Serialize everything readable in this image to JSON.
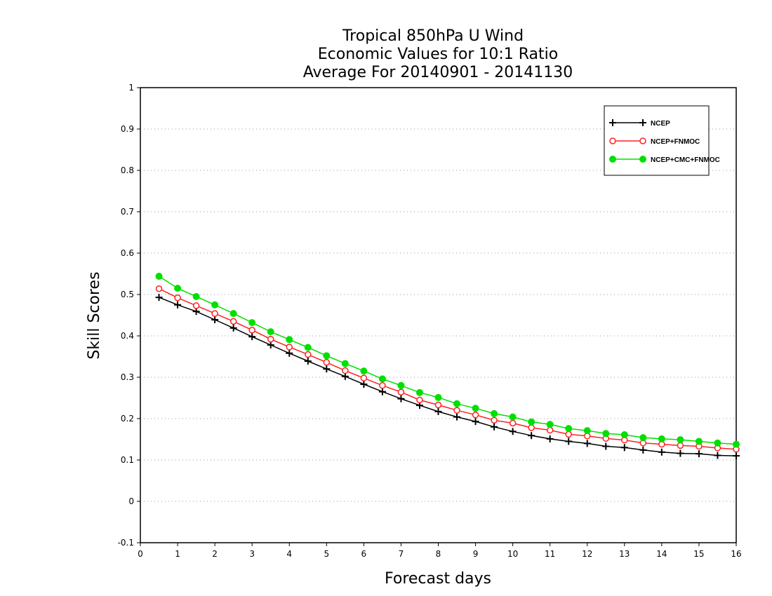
{
  "chart_data": {
    "type": "line",
    "title_lines": [
      "Tropical 850hPa U Wind",
      "Economic Values for 10:1 Ratio",
      "Average For 20140901 - 20141130"
    ],
    "xlabel": "Forecast days",
    "ylabel": "Skill Scores",
    "xlim": [
      0,
      16
    ],
    "ylim": [
      -0.1,
      1
    ],
    "x_ticks": [
      0,
      1,
      2,
      3,
      4,
      5,
      6,
      7,
      8,
      9,
      10,
      11,
      12,
      13,
      14,
      15,
      16
    ],
    "x_tick_labels": [
      "0",
      "1",
      "2",
      "3",
      "4",
      "5",
      "6",
      "7",
      "8",
      "9",
      "10",
      "11",
      "12",
      "13",
      "14",
      "15",
      "16"
    ],
    "y_ticks": [
      -0.1,
      0,
      0.1,
      0.2,
      0.3,
      0.4,
      0.5,
      0.6,
      0.7,
      0.8,
      0.9,
      1
    ],
    "y_tick_labels": [
      "-0.1",
      "0",
      "0.1",
      "0.2",
      "0.3",
      "0.4",
      "0.5",
      "0.6",
      "0.7",
      "0.8",
      "0.9",
      "1"
    ],
    "grid": "horizontal dotted",
    "legend_position": "top-right",
    "x": [
      0.5,
      1,
      1.5,
      2,
      2.5,
      3,
      3.5,
      4,
      4.5,
      5,
      5.5,
      6,
      6.5,
      7,
      7.5,
      8,
      8.5,
      9,
      9.5,
      10,
      10.5,
      11,
      11.5,
      12,
      12.5,
      13,
      13.5,
      14,
      14.5,
      15,
      15.5,
      16
    ],
    "series": [
      {
        "name": "NCEP",
        "color": "#000000",
        "marker": "plus",
        "values": [
          0.493,
          0.475,
          0.459,
          0.439,
          0.419,
          0.398,
          0.378,
          0.358,
          0.339,
          0.32,
          0.302,
          0.283,
          0.265,
          0.248,
          0.232,
          0.217,
          0.204,
          0.193,
          0.18,
          0.169,
          0.159,
          0.151,
          0.145,
          0.14,
          0.133,
          0.13,
          0.124,
          0.119,
          0.116,
          0.115,
          0.111,
          0.11
        ]
      },
      {
        "name": "NCEP+FNMOC",
        "color": "#ff2020",
        "marker": "open-circle",
        "values": [
          0.514,
          0.492,
          0.473,
          0.454,
          0.435,
          0.414,
          0.392,
          0.373,
          0.355,
          0.336,
          0.316,
          0.298,
          0.28,
          0.264,
          0.245,
          0.233,
          0.22,
          0.209,
          0.196,
          0.189,
          0.178,
          0.172,
          0.162,
          0.158,
          0.152,
          0.148,
          0.141,
          0.138,
          0.135,
          0.133,
          0.129,
          0.126
        ]
      },
      {
        "name": "NCEP+CMC+FNMOC",
        "color": "#00e000",
        "marker": "filled-circle",
        "values": [
          0.544,
          0.515,
          0.495,
          0.475,
          0.454,
          0.432,
          0.41,
          0.391,
          0.372,
          0.352,
          0.333,
          0.315,
          0.296,
          0.28,
          0.263,
          0.251,
          0.236,
          0.225,
          0.212,
          0.204,
          0.192,
          0.186,
          0.176,
          0.171,
          0.164,
          0.161,
          0.154,
          0.151,
          0.149,
          0.145,
          0.141,
          0.138
        ]
      }
    ]
  }
}
